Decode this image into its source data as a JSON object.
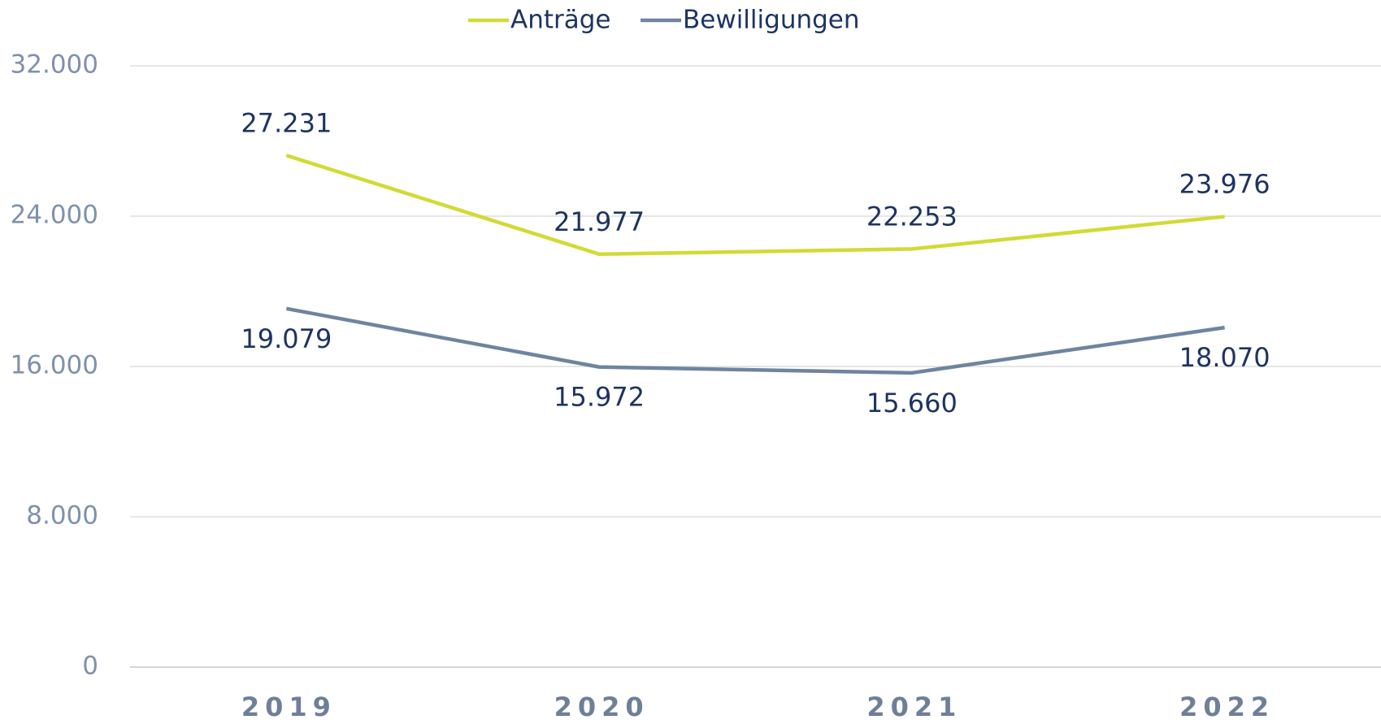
{
  "chart_data": {
    "type": "line",
    "categories": [
      "2019",
      "2020",
      "2021",
      "2022"
    ],
    "series": [
      {
        "name": "Anträge",
        "color": "#d2da35",
        "values": [
          27231,
          21977,
          22253,
          23976
        ],
        "value_labels": [
          "27.231",
          "21.977",
          "22.253",
          "23.976"
        ]
      },
      {
        "name": "Bewilligungen",
        "color": "#6e84a0",
        "values": [
          19079,
          15972,
          15660,
          18070
        ],
        "value_labels": [
          "19.079",
          "15.972",
          "15.660",
          "18.070"
        ]
      }
    ],
    "ylim": [
      0,
      32000
    ],
    "yticks": [
      0,
      {
        "value": 8000,
        "label": "8.000"
      },
      {
        "value": 16000,
        "label": "16.000"
      },
      {
        "value": 24000,
        "label": "24.000"
      },
      {
        "value": 32000,
        "label": "32.000"
      }
    ],
    "grid": true,
    "legend": "top"
  }
}
